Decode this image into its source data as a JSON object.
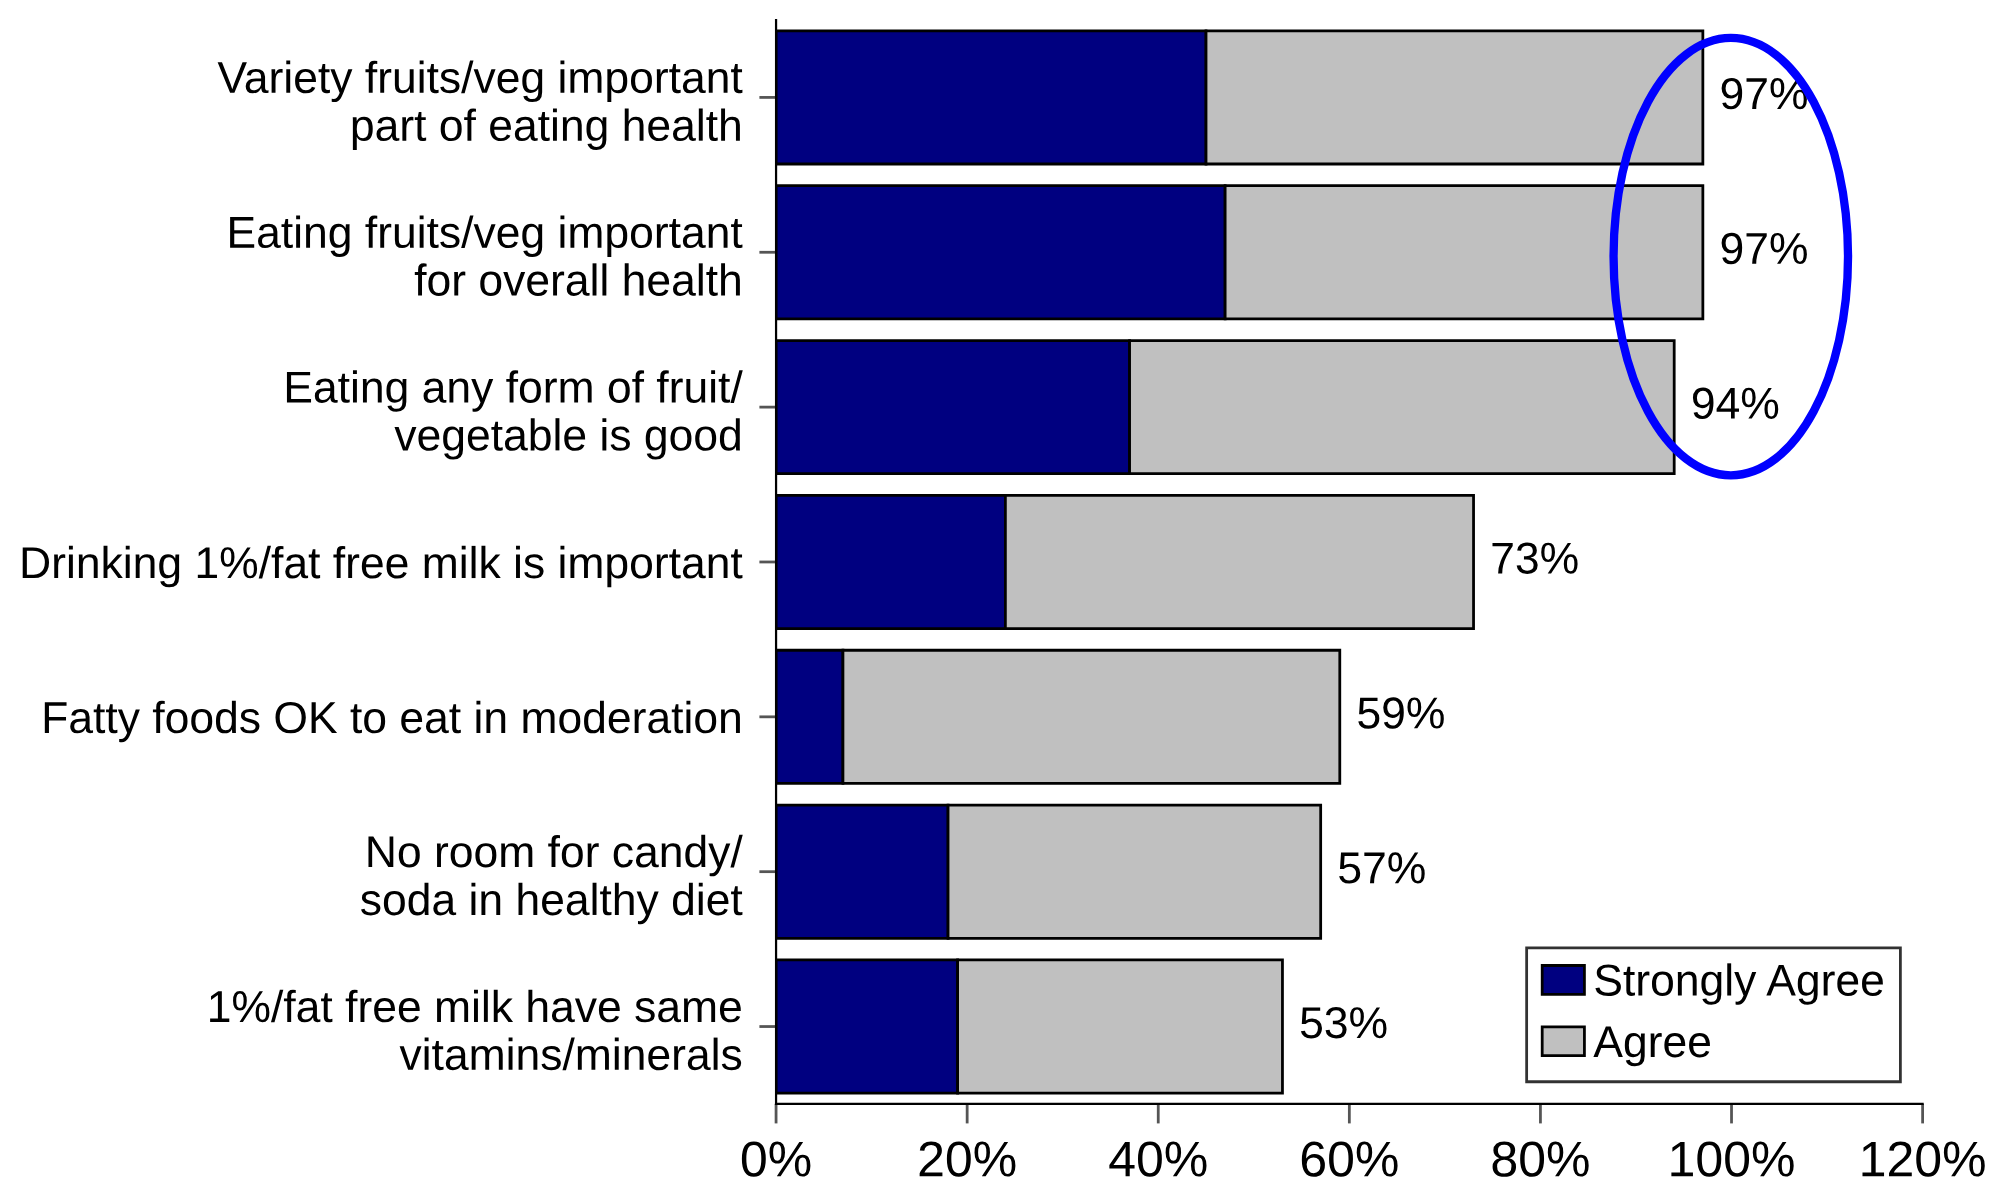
{
  "chart_data": {
    "type": "bar",
    "orientation": "horizontal",
    "stacked": true,
    "categories": [
      "Variety fruits/veg important\npart of eating health",
      "Eating fruits/veg important\nfor overall health",
      "Eating any form of fruit/\nvegetable is good",
      "Drinking 1%/fat free milk is important",
      "Fatty foods OK to eat in moderation",
      "No room for candy/\nsoda in healthy diet",
      "1%/fat free milk have same\nvitamins/minerals"
    ],
    "series": [
      {
        "name": "Strongly Agree",
        "color": "#000080",
        "values": [
          45,
          47,
          37,
          24,
          7,
          18,
          19
        ]
      },
      {
        "name": "Agree",
        "color": "#c0c0c0",
        "values": [
          52,
          50,
          57,
          49,
          52,
          39,
          34
        ]
      }
    ],
    "totals": [
      "97%",
      "97%",
      "94%",
      "73%",
      "59%",
      "57%",
      "53%"
    ],
    "xlim": [
      0,
      120
    ],
    "xticks": [
      {
        "value": 0,
        "label": "0%"
      },
      {
        "value": 20,
        "label": "20%"
      },
      {
        "value": 40,
        "label": "40%"
      },
      {
        "value": 60,
        "label": "60%"
      },
      {
        "value": 80,
        "label": "80%"
      },
      {
        "value": 100,
        "label": "100%"
      },
      {
        "value": 120,
        "label": "120%"
      }
    ],
    "grid": false,
    "legend": "bottom right"
  }
}
